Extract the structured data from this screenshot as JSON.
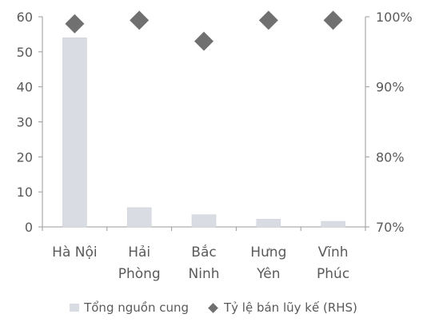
{
  "chart_data": {
    "type": "bar",
    "categories": [
      [
        "Hà Nội"
      ],
      [
        "Hải",
        "Phòng"
      ],
      [
        "Bắc",
        "Ninh"
      ],
      [
        "Hưng",
        "Yên"
      ],
      [
        "Vĩnh",
        "Phúc"
      ]
    ],
    "series": [
      {
        "name": "Tổng nguồn cung",
        "type": "bar",
        "axis": "left",
        "values": [
          54,
          5.5,
          3.5,
          2.2,
          1.6
        ],
        "color": "#d9dde3"
      },
      {
        "name": "Tỷ lệ bán lũy kế (RHS)",
        "type": "scatter",
        "marker": "diamond",
        "axis": "right",
        "values": [
          0.99,
          0.995,
          0.965,
          0.995,
          0.995
        ],
        "color": "#707070"
      }
    ],
    "ylim": [
      0,
      60
    ],
    "yticks": [
      "0",
      "10",
      "20",
      "30",
      "40",
      "50",
      "60"
    ],
    "y2lim": [
      0.7,
      1.0
    ],
    "y2ticks": [
      "70%",
      "80%",
      "90%",
      "100%"
    ],
    "grid": false,
    "legend": "bottom"
  },
  "legend": {
    "bar_label": "Tổng nguồn cung",
    "marker_label": "Tỷ lệ bán lũy kế (RHS)"
  }
}
